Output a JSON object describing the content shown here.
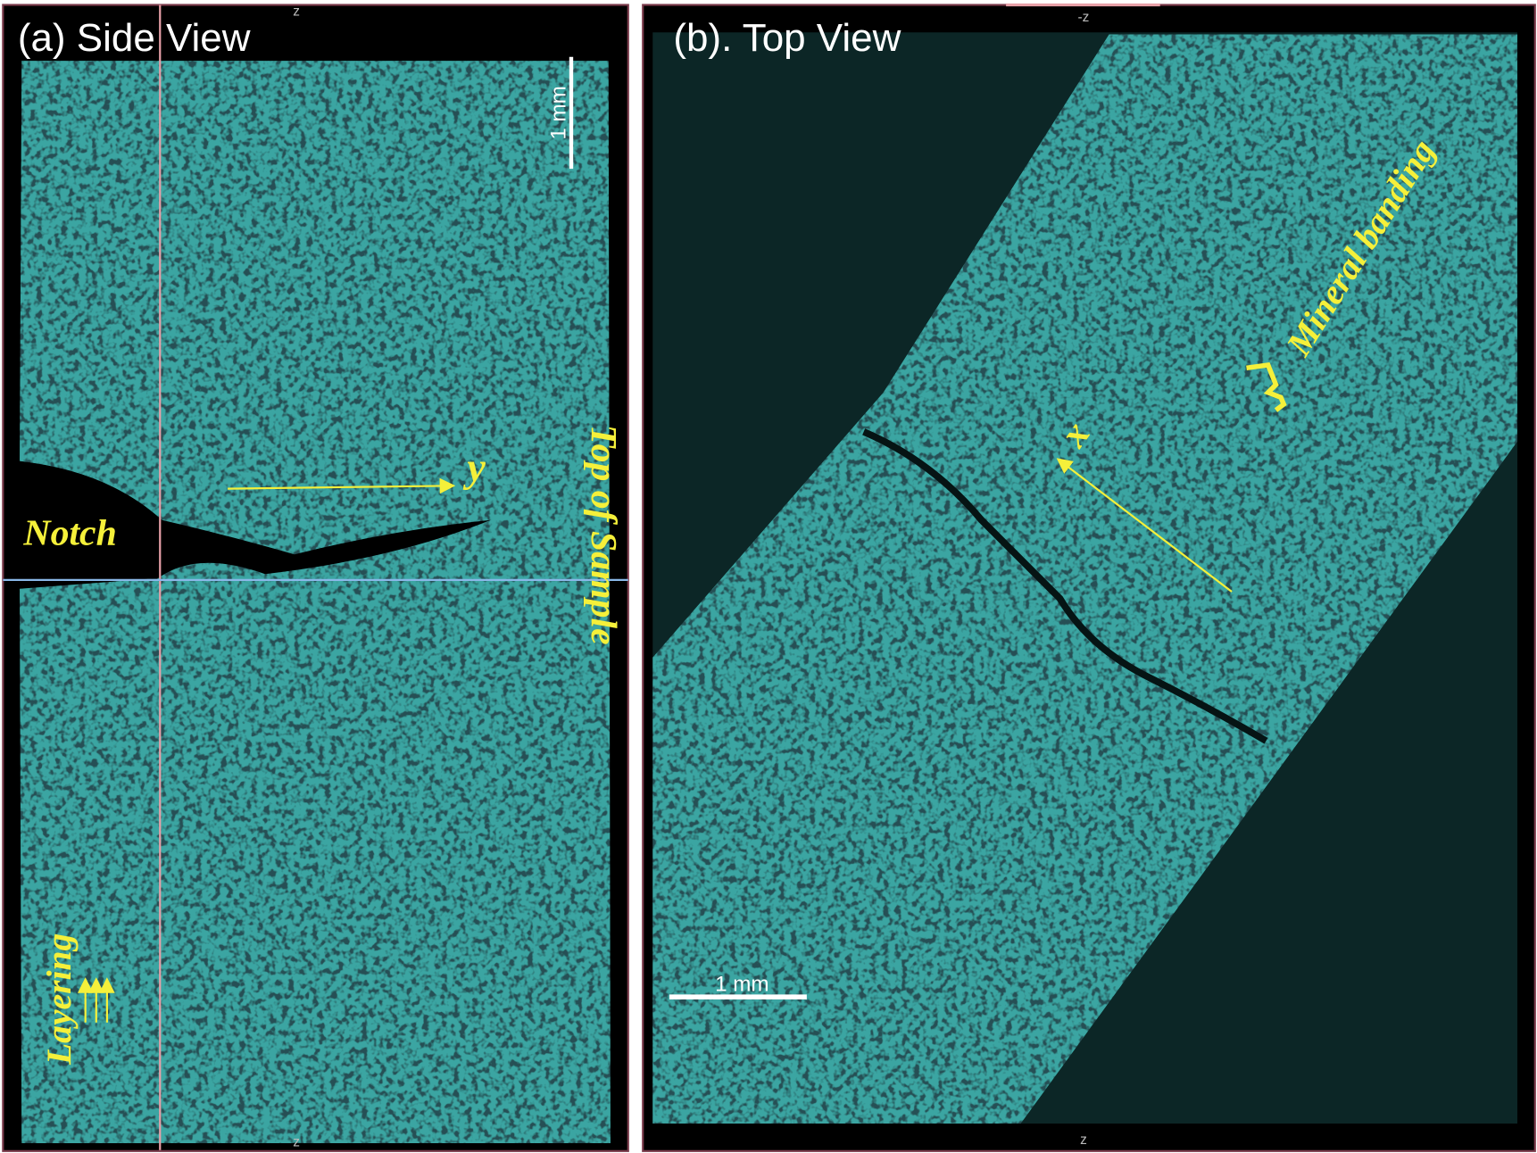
{
  "panels": [
    {
      "title": "(a) Side View",
      "axis_top": "z",
      "axis_bottom": "z",
      "scale_bar": "1 mm",
      "labels": {
        "y": "y",
        "notch": "Notch",
        "top": "Top of Sample",
        "layering": "Layering"
      }
    },
    {
      "title": "(b). Top View",
      "axis_top": "-z",
      "axis_bottom": "z",
      "scale_bar": "1 mm",
      "labels": {
        "x": "x",
        "banding": "Mineral banding"
      }
    }
  ]
}
